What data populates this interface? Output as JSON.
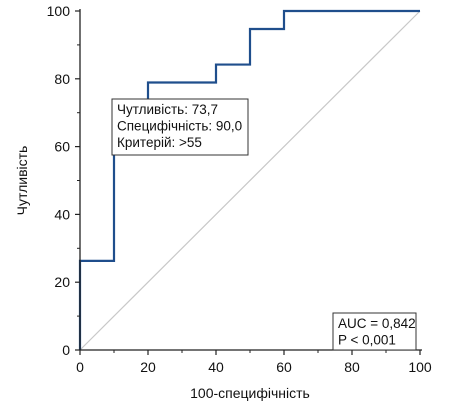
{
  "chart_data": {
    "type": "line",
    "xlabel": "100-специфічність",
    "ylabel": "Чутливість",
    "xlim": [
      0,
      100
    ],
    "ylim": [
      0,
      100
    ],
    "x_ticks": [
      0,
      20,
      40,
      60,
      80,
      100
    ],
    "y_ticks": [
      0,
      20,
      40,
      60,
      80,
      100
    ],
    "grid": false,
    "series": [
      {
        "color": "#1f4e8c",
        "points": [
          [
            0,
            0
          ],
          [
            0,
            26.3
          ],
          [
            10,
            26.3
          ],
          [
            10,
            73.7
          ],
          [
            20,
            73.7
          ],
          [
            20,
            78.9
          ],
          [
            40,
            78.9
          ],
          [
            40,
            84.2
          ],
          [
            50,
            84.2
          ],
          [
            50,
            94.7
          ],
          [
            60,
            94.7
          ],
          [
            60,
            100
          ],
          [
            100,
            100
          ]
        ]
      },
      {
        "color": "#c8c8c8",
        "points": [
          [
            0,
            0
          ],
          [
            100,
            100
          ]
        ]
      }
    ],
    "annotations": [
      {
        "lines": [
          "Чутливість: 73,7",
          "Специфічність: 90,0",
          "Критерій: >55"
        ]
      },
      {
        "lines": [
          "AUC = 0,842",
          "P < 0,001"
        ]
      }
    ]
  }
}
